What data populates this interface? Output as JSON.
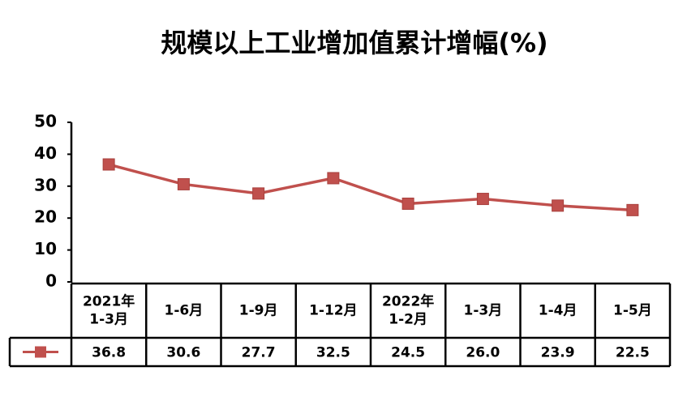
{
  "chart_data": {
    "type": "line",
    "title": "规模以上工业增加值累计增幅(%)",
    "categories": [
      [
        "2021年",
        "1-3月"
      ],
      [
        "1-6月"
      ],
      [
        "1-9月"
      ],
      [
        "1-12月"
      ],
      [
        "2022年",
        "1-2月"
      ],
      [
        "1-3月"
      ],
      [
        "1-4月"
      ],
      [
        "1-5月"
      ]
    ],
    "series": [
      {
        "color": "#c0504d",
        "values": [
          36.8,
          30.6,
          27.7,
          32.5,
          24.5,
          26.0,
          23.9,
          22.5
        ],
        "value_labels": [
          "36.8",
          "30.6",
          "27.7",
          "32.5",
          "24.5",
          "26.0",
          "23.9",
          "22.5"
        ]
      }
    ],
    "ylim": [
      0,
      50
    ],
    "yticks": [
      0,
      10,
      20,
      30,
      40,
      50
    ],
    "grid": false,
    "data_table": true
  }
}
